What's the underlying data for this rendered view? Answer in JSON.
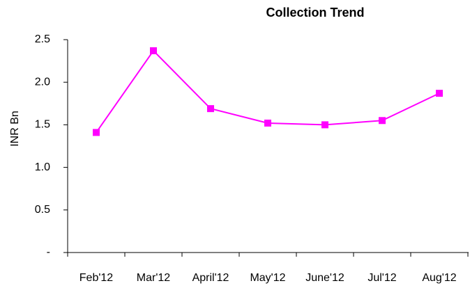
{
  "chart_data": {
    "type": "line",
    "title": "Collection Trend",
    "y_label": "INR Bn",
    "categories": [
      "Feb'12",
      "Mar'12",
      "April'12",
      "May'12",
      "June'12",
      "Jul'12",
      "Aug'12"
    ],
    "series": [
      {
        "name": "Collection",
        "color": "#ff00ff",
        "values": [
          1.41,
          2.37,
          1.69,
          1.52,
          1.5,
          1.55,
          1.87
        ]
      }
    ],
    "ylim": [
      0,
      2.5
    ],
    "yticks": [
      {
        "value": 0,
        "label": "-"
      },
      0.5,
      {
        "value": 1,
        "label": "1.0"
      },
      1.5,
      {
        "value": 2,
        "label": "2.0"
      },
      2.5
    ],
    "grid": false
  }
}
